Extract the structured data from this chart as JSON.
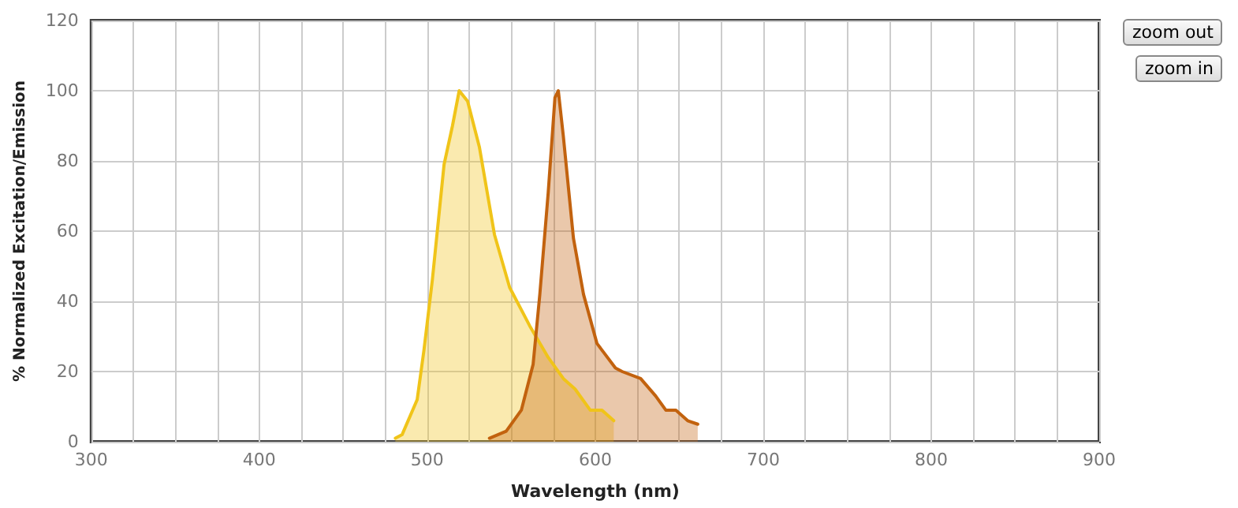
{
  "chart_data": {
    "type": "area",
    "xlabel": "Wavelength (nm)",
    "ylabel": "% Normalized Excitation/Emission",
    "xlim": [
      300,
      900
    ],
    "ylim": [
      0,
      120
    ],
    "xticks": [
      300,
      {
        "value": 325,
        "label": null
      },
      {
        "value": 350,
        "label": null
      },
      {
        "value": 375,
        "label": null
      },
      400,
      {
        "value": 425,
        "label": null
      },
      {
        "value": 450,
        "label": null
      },
      {
        "value": 475,
        "label": null
      },
      500,
      {
        "value": 525,
        "label": null
      },
      {
        "value": 550,
        "label": null
      },
      {
        "value": 575,
        "label": null
      },
      600,
      {
        "value": 625,
        "label": null
      },
      {
        "value": 650,
        "label": null
      },
      {
        "value": 675,
        "label": null
      },
      700,
      {
        "value": 725,
        "label": null
      },
      {
        "value": 750,
        "label": null
      },
      {
        "value": 775,
        "label": null
      },
      800,
      {
        "value": 825,
        "label": null
      },
      {
        "value": 850,
        "label": null
      },
      {
        "value": 875,
        "label": null
      },
      900
    ],
    "yticks": [
      0,
      20,
      40,
      60,
      80,
      100,
      120
    ],
    "grid": true,
    "marker": "none",
    "line_style": "solid",
    "series": [
      {
        "color": "#f0c419",
        "x": [
          481,
          485,
          494,
          498,
          503,
          510,
          515,
          519,
          524,
          531,
          540,
          549,
          561,
          572,
          581,
          588,
          597,
          604,
          611
        ],
        "values": [
          1,
          2,
          12,
          26,
          46,
          79,
          90,
          100,
          97,
          84,
          59,
          44,
          33,
          24,
          18,
          15,
          9,
          9,
          6
        ]
      },
      {
        "color": "#c2620e",
        "x": [
          537,
          547,
          556,
          563,
          567,
          572,
          576,
          578,
          581,
          587,
          593,
          601,
          612,
          616,
          627,
          636,
          642,
          648,
          655,
          661
        ],
        "values": [
          1,
          3,
          9,
          22,
          42,
          71,
          98,
          100,
          87,
          58,
          42,
          28,
          21,
          20,
          18,
          13,
          9,
          9,
          6,
          5
        ]
      }
    ],
    "annotations": [
      "zoom out",
      "zoom in"
    ]
  }
}
